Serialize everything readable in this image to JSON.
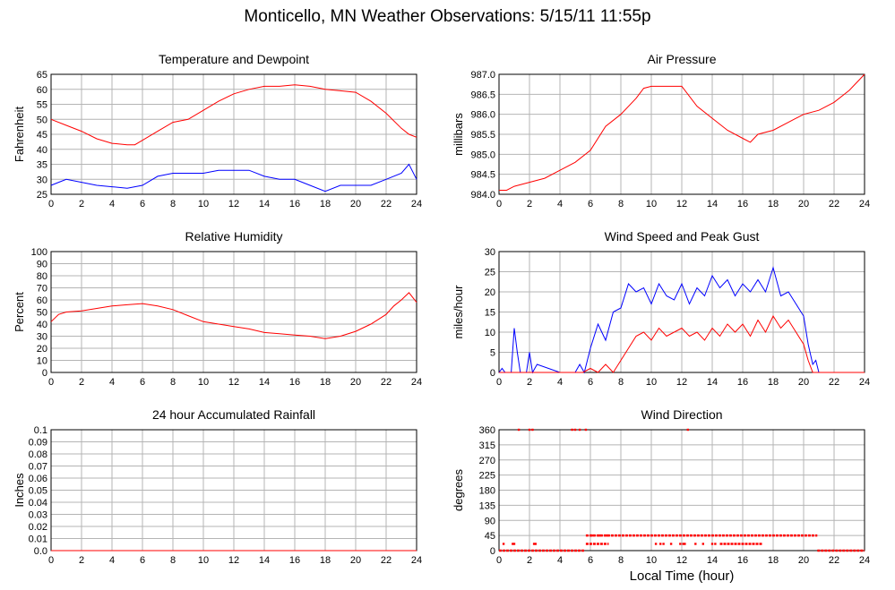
{
  "title": "Monticello, MN Weather Observations: 5/15/11 11:55p",
  "xlabel": "Local Time (hour)",
  "chart_data": [
    {
      "id": "temp",
      "type": "line",
      "title": "Temperature and Dewpoint",
      "xlabel": "",
      "ylabel": "Fahrenheit",
      "xlim": [
        0,
        24
      ],
      "ylim": [
        25,
        65
      ],
      "xticks": [
        0,
        2,
        4,
        6,
        8,
        10,
        12,
        14,
        16,
        18,
        20,
        22,
        24
      ],
      "yticks": [
        25,
        30,
        35,
        40,
        45,
        50,
        55,
        60,
        65
      ],
      "ytick_labels": [
        "25",
        "30",
        "35",
        "40",
        "45",
        "50",
        "55",
        "60",
        "65"
      ],
      "grid": true,
      "series": [
        {
          "color": "#ff0000",
          "x": [
            0,
            1,
            2,
            3,
            4,
            5,
            5.5,
            6,
            7,
            8,
            9,
            10,
            11,
            12,
            13,
            14,
            15,
            16,
            17,
            18,
            19,
            20,
            21,
            22,
            23,
            23.5,
            24
          ],
          "y": [
            50,
            48,
            46,
            43.5,
            42,
            41.5,
            41.5,
            43,
            46,
            49,
            50,
            53,
            56,
            58.5,
            60,
            61,
            61,
            61.5,
            61,
            60,
            59.5,
            59,
            56,
            52,
            47,
            45,
            44
          ]
        },
        {
          "color": "#0000ff",
          "x": [
            0,
            0.5,
            1,
            2,
            3,
            4,
            5,
            6,
            7,
            8,
            9,
            10,
            11,
            12,
            13,
            14,
            15,
            16,
            17,
            18,
            19,
            20,
            21,
            22,
            23,
            23.5,
            24
          ],
          "y": [
            28,
            29,
            30,
            29,
            28,
            27.5,
            27,
            28,
            31,
            32,
            32,
            32,
            33,
            33,
            33,
            31,
            30,
            30,
            28,
            26,
            28,
            28,
            28,
            30,
            32,
            35,
            30
          ]
        }
      ]
    },
    {
      "id": "pressure",
      "type": "line",
      "title": "Air Pressure",
      "xlabel": "",
      "ylabel": "millibars",
      "xlim": [
        0,
        24
      ],
      "ylim": [
        984.0,
        987.0
      ],
      "xticks": [
        0,
        2,
        4,
        6,
        8,
        10,
        12,
        14,
        16,
        18,
        20,
        22,
        24
      ],
      "yticks": [
        984.0,
        984.5,
        985.0,
        985.5,
        986.0,
        986.5,
        987.0
      ],
      "ytick_labels": [
        "984.0",
        "984.5",
        "985.0",
        "985.5",
        "986.0",
        "986.5",
        "987.0"
      ],
      "grid": true,
      "series": [
        {
          "color": "#ff0000",
          "x": [
            0,
            0.5,
            1,
            2,
            3,
            4,
            5,
            6,
            7,
            8,
            9,
            9.5,
            10,
            11,
            12,
            13,
            14,
            15,
            16,
            16.5,
            17,
            18,
            19,
            20,
            21,
            22,
            23,
            24
          ],
          "y": [
            984.1,
            984.1,
            984.2,
            984.3,
            984.4,
            984.6,
            984.8,
            985.1,
            985.7,
            986.0,
            986.4,
            986.65,
            986.7,
            986.7,
            986.7,
            986.2,
            985.9,
            985.6,
            985.4,
            985.3,
            985.5,
            985.6,
            985.8,
            986.0,
            986.1,
            986.3,
            986.6,
            987.0
          ]
        }
      ]
    },
    {
      "id": "humidity",
      "type": "line",
      "title": "Relative Humidity",
      "xlabel": "",
      "ylabel": "Percent",
      "xlim": [
        0,
        24
      ],
      "ylim": [
        0,
        100
      ],
      "xticks": [
        0,
        2,
        4,
        6,
        8,
        10,
        12,
        14,
        16,
        18,
        20,
        22,
        24
      ],
      "yticks": [
        0,
        10,
        20,
        30,
        40,
        50,
        60,
        70,
        80,
        90,
        100
      ],
      "ytick_labels": [
        "0",
        "10",
        "20",
        "30",
        "40",
        "50",
        "60",
        "70",
        "80",
        "90",
        "100"
      ],
      "grid": true,
      "series": [
        {
          "color": "#ff0000",
          "x": [
            0,
            0.5,
            1,
            2,
            3,
            4,
            5,
            6,
            7,
            8,
            9,
            10,
            11,
            12,
            13,
            14,
            15,
            16,
            17,
            18,
            19,
            20,
            21,
            22,
            22.5,
            23,
            23.5,
            24
          ],
          "y": [
            42,
            48,
            50,
            51,
            53,
            55,
            56,
            57,
            55,
            52,
            47,
            42,
            40,
            38,
            36,
            33,
            32,
            31,
            30,
            28,
            30,
            34,
            40,
            48,
            55,
            60,
            66,
            58
          ]
        }
      ]
    },
    {
      "id": "wind",
      "type": "line",
      "title": "Wind Speed and Peak Gust",
      "xlabel": "",
      "ylabel": "miles/hour",
      "xlim": [
        0,
        24
      ],
      "ylim": [
        0,
        30
      ],
      "xticks": [
        0,
        2,
        4,
        6,
        8,
        10,
        12,
        14,
        16,
        18,
        20,
        22,
        24
      ],
      "yticks": [
        0,
        5,
        10,
        15,
        20,
        25,
        30
      ],
      "ytick_labels": [
        "0",
        "5",
        "10",
        "15",
        "20",
        "25",
        "30"
      ],
      "grid": true,
      "series": [
        {
          "color": "#0000ff",
          "x": [
            0,
            0.2,
            0.4,
            0.8,
            1,
            1.2,
            1.4,
            1.8,
            2,
            2.2,
            2.5,
            4,
            5,
            5.3,
            5.6,
            6,
            6.5,
            7,
            7.5,
            8,
            8.5,
            9,
            9.5,
            10,
            10.5,
            11,
            11.5,
            12,
            12.5,
            13,
            13.5,
            14,
            14.5,
            15,
            15.5,
            16,
            16.5,
            17,
            17.5,
            18,
            18.5,
            19,
            19.5,
            20,
            20.3,
            20.6,
            20.8,
            21,
            21.5,
            24
          ],
          "y": [
            0,
            1,
            0,
            0,
            11,
            5,
            0,
            0,
            5,
            0,
            2,
            0,
            0,
            2,
            0,
            6,
            12,
            8,
            15,
            16,
            22,
            20,
            21,
            17,
            22,
            19,
            18,
            22,
            17,
            21,
            19,
            24,
            21,
            23,
            19,
            22,
            20,
            23,
            20,
            26,
            19,
            20,
            17,
            14,
            7,
            2,
            3,
            0,
            0,
            0
          ]
        },
        {
          "color": "#ff0000",
          "x": [
            0,
            5.5,
            6,
            6.5,
            7,
            7.5,
            8,
            8.5,
            9,
            9.5,
            10,
            10.5,
            11,
            11.5,
            12,
            12.5,
            13,
            13.5,
            14,
            14.5,
            15,
            15.5,
            16,
            16.5,
            17,
            17.5,
            18,
            18.5,
            19,
            19.5,
            20,
            20.3,
            20.6,
            21,
            24
          ],
          "y": [
            0,
            0,
            1,
            0,
            2,
            0,
            3,
            6,
            9,
            10,
            8,
            11,
            9,
            10,
            11,
            9,
            10,
            8,
            11,
            9,
            12,
            10,
            12,
            9,
            13,
            10,
            14,
            11,
            13,
            10,
            7,
            3,
            0,
            0,
            0
          ]
        }
      ]
    },
    {
      "id": "rain",
      "type": "line",
      "title": "24 hour Accumulated Rainfall",
      "xlabel": "",
      "ylabel": "Inches",
      "xlim": [
        0,
        24
      ],
      "ylim": [
        0,
        0.1
      ],
      "xticks": [
        0,
        2,
        4,
        6,
        8,
        10,
        12,
        14,
        16,
        18,
        20,
        22,
        24
      ],
      "yticks": [
        0,
        0.01,
        0.02,
        0.03,
        0.04,
        0.05,
        0.06,
        0.07,
        0.08,
        0.09,
        0.1
      ],
      "ytick_labels": [
        "0.0",
        "0.01",
        "0.02",
        "0.03",
        "0.04",
        "0.05",
        "0.06",
        "0.07",
        "0.08",
        "0.09",
        "0.1"
      ],
      "grid": true,
      "series": [
        {
          "color": "#ff0000",
          "x": [
            0,
            24
          ],
          "y": [
            0,
            0
          ]
        }
      ]
    },
    {
      "id": "winddir",
      "type": "scatter",
      "title": "Wind Direction",
      "xlabel": "",
      "ylabel": "degrees",
      "xlim": [
        0,
        24
      ],
      "ylim": [
        0,
        360
      ],
      "xticks": [
        0,
        2,
        4,
        6,
        8,
        10,
        12,
        14,
        16,
        18,
        20,
        22,
        24
      ],
      "yticks": [
        0,
        45,
        90,
        135,
        180,
        225,
        270,
        315,
        360
      ],
      "ytick_labels": [
        "0",
        "45",
        "90",
        "135",
        "180",
        "225",
        "270",
        "315",
        "360"
      ],
      "grid": true,
      "series": [
        {
          "color": "#ff0000",
          "segments": [
            [
              0,
              0,
              5.6,
              0
            ],
            [
              20.9,
              0,
              24,
              0
            ],
            [
              5.7,
              45,
              20.9,
              45
            ],
            [
              5.7,
              20,
              7.2,
              20
            ],
            [
              14.5,
              20,
              17.3,
              20
            ]
          ],
          "x": [
            0.3,
            0.9,
            1.0,
            1.3,
            2.0,
            2.2,
            2.3,
            2.4,
            4.8,
            5.0,
            5.3,
            5.7,
            6.1,
            6.6,
            7.1,
            10.3,
            10.6,
            10.8,
            11.3,
            11.9,
            12.1,
            12.4,
            12.2,
            12.9,
            13.4,
            14.0,
            14.2
          ],
          "y": [
            20,
            20,
            20,
            360,
            360,
            360,
            20,
            20,
            360,
            360,
            360,
            360,
            45,
            45,
            45,
            20,
            20,
            20,
            20,
            20,
            20,
            360,
            20,
            20,
            20,
            20,
            20
          ]
        }
      ]
    }
  ]
}
